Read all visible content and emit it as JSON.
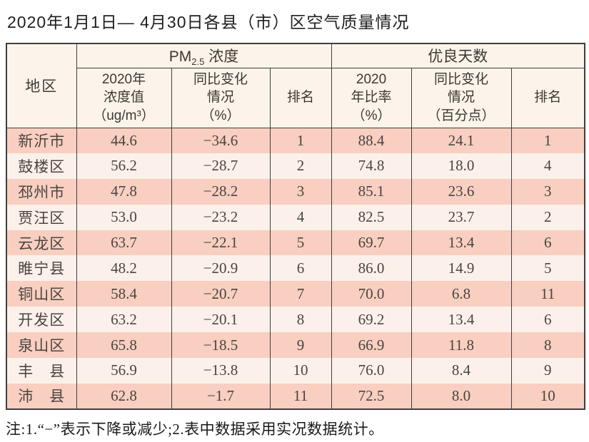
{
  "page": {
    "title": "2020年1月1日— 4月30日各县（市）区空气质量情况",
    "footnote": "注:1.“−”表示下降或减少;2.表中数据采用实况数据统计。"
  },
  "colors": {
    "row_salmon": "#f8cfc0",
    "row_light": "#fcf1ea",
    "header_bg": "#fcf4ea",
    "border": "#3f3f3f",
    "text_cell": "#4a4440"
  },
  "table": {
    "region_header": "地区",
    "group_pm": {
      "prefix": "PM",
      "sub": "2.5",
      "suffix": " 浓度"
    },
    "group_good_days": "优良天数",
    "sub_headers": {
      "pm_value": "2020年\n浓度值\n（ug/m³）",
      "pm_yoy": "同比变化\n情况\n（%）",
      "pm_rank": "排名",
      "good_ratio": "2020\n年比率\n（%）",
      "good_yoy": "同比变化\n情况\n（百分点）",
      "good_rank": "排名"
    },
    "rows": [
      [
        "新沂市",
        "44.6",
        "−34.6",
        "1",
        "88.4",
        "24.1",
        "1"
      ],
      [
        "鼓楼区",
        "56.2",
        "−28.7",
        "2",
        "74.8",
        "18.0",
        "4"
      ],
      [
        "邳州市",
        "47.8",
        "−28.2",
        "3",
        "85.1",
        "23.6",
        "3"
      ],
      [
        "贾汪区",
        "53.0",
        "−23.2",
        "4",
        "82.5",
        "23.7",
        "2"
      ],
      [
        "云龙区",
        "63.7",
        "−22.1",
        "5",
        "69.7",
        "13.4",
        "6"
      ],
      [
        "睢宁县",
        "48.2",
        "−20.9",
        "6",
        "86.0",
        "14.9",
        "5"
      ],
      [
        "铜山区",
        "58.4",
        "−20.7",
        "7",
        "70.0",
        "6.8",
        "11"
      ],
      [
        "开发区",
        "63.2",
        "−20.1",
        "8",
        "69.2",
        "13.4",
        "6"
      ],
      [
        "泉山区",
        "65.8",
        "−18.5",
        "9",
        "66.9",
        "11.8",
        "8"
      ],
      [
        "丰　县",
        "56.9",
        "−13.8",
        "10",
        "76.0",
        "8.4",
        "9"
      ],
      [
        "沛　县",
        "62.8",
        "−1.7",
        "11",
        "72.5",
        "8.0",
        "10"
      ]
    ]
  },
  "chart_data": {
    "type": "table",
    "title": "2020年1月1日— 4月30日各县（市）区空气质量情况",
    "columns": [
      "地区",
      "PM2.5 2020年浓度值(ug/m3)",
      "PM2.5 同比变化情况(%)",
      "PM2.5 排名",
      "优良天数 2020年比率(%)",
      "优良天数 同比变化情况(百分点)",
      "优良天数 排名"
    ],
    "regions": [
      "新沂市",
      "鼓楼区",
      "邳州市",
      "贾汪区",
      "云龙区",
      "睢宁县",
      "铜山区",
      "开发区",
      "泉山区",
      "丰县",
      "沛县"
    ],
    "pm25_value_2020": [
      44.6,
      56.2,
      47.8,
      53.0,
      63.7,
      48.2,
      58.4,
      63.2,
      65.8,
      56.9,
      62.8
    ],
    "pm25_yoy_change_pct": [
      -34.6,
      -28.7,
      -28.2,
      -23.2,
      -22.1,
      -20.9,
      -20.7,
      -20.1,
      -18.5,
      -13.8,
      -1.7
    ],
    "pm25_rank": [
      1,
      2,
      3,
      4,
      5,
      6,
      7,
      8,
      9,
      10,
      11
    ],
    "good_days_ratio_pct": [
      88.4,
      74.8,
      85.1,
      82.5,
      69.7,
      86.0,
      70.0,
      69.2,
      66.9,
      76.0,
      72.5
    ],
    "good_days_yoy_change_points": [
      24.1,
      18.0,
      23.6,
      23.7,
      13.4,
      14.9,
      6.8,
      13.4,
      11.8,
      8.4,
      8.0
    ],
    "good_days_rank": [
      1,
      4,
      3,
      2,
      6,
      5,
      11,
      6,
      8,
      9,
      10
    ]
  }
}
